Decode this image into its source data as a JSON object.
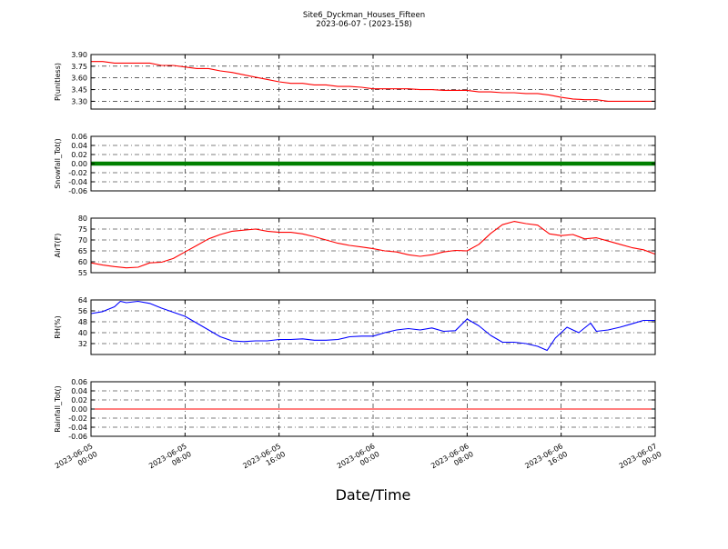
{
  "figure": {
    "title_line1": "Site6_Dyckman_Houses_Fifteen",
    "title_line2": "2023-06-07 - (2023-158)",
    "xlabel": "Date/Time"
  },
  "chart_data": [
    {
      "type": "line",
      "ylabel": "P(unitless)",
      "ylim": [
        3.2,
        3.9
      ],
      "yticks": [
        "3.90",
        "3.75",
        "3.60",
        "3.45",
        "3.30"
      ],
      "color": "#ff0000",
      "grid": true,
      "x_hours": [
        0,
        1,
        2,
        3,
        4,
        5,
        6,
        7,
        8,
        9,
        10,
        11,
        12,
        13,
        14,
        15,
        16,
        17,
        18,
        19,
        20,
        21,
        22,
        23,
        24,
        25,
        26,
        27,
        28,
        29,
        30,
        31,
        32,
        33,
        34,
        35,
        36,
        37,
        38,
        39,
        40,
        41,
        42,
        43,
        44,
        45,
        46,
        47,
        48
      ],
      "values": [
        3.81,
        3.81,
        3.79,
        3.79,
        3.79,
        3.79,
        3.76,
        3.76,
        3.74,
        3.72,
        3.72,
        3.69,
        3.67,
        3.64,
        3.61,
        3.58,
        3.55,
        3.53,
        3.53,
        3.51,
        3.51,
        3.49,
        3.49,
        3.48,
        3.46,
        3.46,
        3.46,
        3.46,
        3.45,
        3.45,
        3.44,
        3.44,
        3.44,
        3.42,
        3.42,
        3.41,
        3.41,
        3.4,
        3.4,
        3.38,
        3.35,
        3.33,
        3.32,
        3.32,
        3.3,
        3.3,
        3.3,
        3.3,
        3.3
      ]
    },
    {
      "type": "scatter",
      "ylabel": "Snowfall_Tot()",
      "ylim": [
        -0.06,
        0.06
      ],
      "yticks": [
        "0.06",
        "0.04",
        "0.02",
        "0.00",
        "-0.02",
        "-0.04",
        "-0.06"
      ],
      "color": "#008000",
      "grid": true,
      "x_range_hours": [
        0,
        48
      ],
      "constant_value": 0.0
    },
    {
      "type": "line",
      "ylabel": "AirT(F)",
      "ylim": [
        55,
        80
      ],
      "yticks": [
        "80",
        "75",
        "70",
        "65",
        "60",
        "55"
      ],
      "color": "#ff0000",
      "grid": true,
      "x_hours": [
        0,
        1,
        2,
        3,
        4,
        5,
        6,
        7,
        8,
        9,
        10,
        11,
        12,
        13,
        14,
        15,
        16,
        17,
        18,
        19,
        20,
        21,
        22,
        23,
        24,
        25,
        26,
        27,
        28,
        29,
        30,
        31,
        32,
        33,
        34,
        35,
        36,
        37,
        38,
        39,
        40,
        41,
        42,
        43,
        44,
        45,
        46,
        47,
        48
      ],
      "values": [
        59.5,
        58.5,
        57.8,
        57.2,
        57.5,
        59.5,
        59.8,
        61.5,
        64.5,
        67.5,
        70.5,
        72.5,
        74.0,
        74.5,
        75.0,
        74.0,
        73.5,
        73.5,
        72.8,
        71.5,
        70.0,
        68.5,
        67.5,
        66.8,
        66.0,
        65.0,
        64.5,
        63.2,
        62.5,
        63.2,
        64.5,
        65.2,
        65.0,
        68.0,
        73.0,
        77.0,
        78.5,
        77.5,
        76.8,
        72.8,
        72.0,
        72.5,
        70.5,
        71.0,
        69.5,
        68.0,
        66.5,
        65.5,
        63.5
      ]
    },
    {
      "type": "line",
      "ylabel": "RH(%)",
      "ylim": [
        24,
        64
      ],
      "yticks": [
        "64",
        "56",
        "48",
        "40",
        "32"
      ],
      "color": "#0000ff",
      "grid": true,
      "x_hours": [
        0,
        1,
        2,
        2.5,
        3,
        4,
        5,
        6,
        7,
        8,
        9,
        10,
        11,
        12,
        13,
        14,
        15,
        16,
        17,
        18,
        19,
        20,
        21,
        22,
        23,
        24,
        25,
        26,
        27,
        28,
        29,
        30,
        31,
        32,
        33,
        34,
        35,
        36,
        37,
        38,
        38.8,
        39.5,
        40.5,
        41.5,
        42.5,
        43,
        44,
        45,
        46,
        47,
        48
      ],
      "values": [
        54,
        55.5,
        59,
        63,
        62,
        63,
        61.5,
        58,
        55,
        52,
        47,
        42,
        37,
        34,
        33.5,
        34,
        34,
        35,
        35,
        35.5,
        34.5,
        34.5,
        35,
        37,
        37.5,
        37.5,
        40,
        42,
        43,
        42,
        43.5,
        41,
        41.5,
        50,
        45,
        38,
        33,
        33,
        32,
        30,
        27,
        36,
        44,
        40,
        47,
        41,
        42,
        44,
        46.5,
        49,
        49
      ]
    },
    {
      "type": "line",
      "ylabel": "Rainfall_Tot()",
      "ylim": [
        -0.06,
        0.06
      ],
      "yticks": [
        "0.06",
        "0.04",
        "0.02",
        "0.00",
        "-0.02",
        "-0.04",
        "-0.06"
      ],
      "color": "#ff0000",
      "grid": true,
      "x_range_hours": [
        0,
        48
      ],
      "constant_value": 0.0
    }
  ],
  "x_axis": {
    "range_hours": [
      0,
      48
    ],
    "ticks": [
      {
        "line1": "2023-06-05",
        "line2": "00:00"
      },
      {
        "line1": "2023-06-05",
        "line2": "08:00"
      },
      {
        "line1": "2023-06-05",
        "line2": "16:00"
      },
      {
        "line1": "2023-06-06",
        "line2": "00:00"
      },
      {
        "line1": "2023-06-06",
        "line2": "08:00"
      },
      {
        "line1": "2023-06-06",
        "line2": "16:00"
      },
      {
        "line1": "2023-06-07",
        "line2": "00:00"
      }
    ]
  }
}
